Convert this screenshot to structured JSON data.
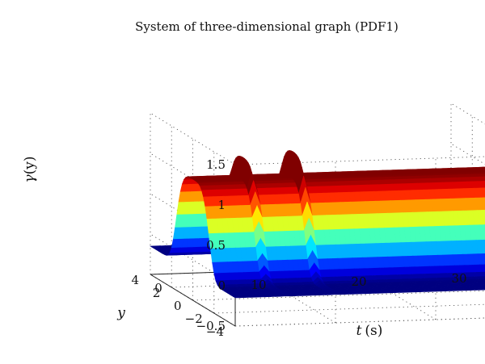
{
  "chart_data": {
    "type": "surface",
    "title": "System of three-dimensional graph (PDF1)",
    "xlabel": {
      "symbol": "t",
      "unit": "(s)"
    },
    "ylabel": "y",
    "zlabel": {
      "symbol": "γ",
      "arg": "(y)"
    },
    "xlim": [
      0,
      30
    ],
    "ylim": [
      -4,
      4
    ],
    "zlim": [
      -0.5,
      1.5
    ],
    "xticks": [
      "0",
      "10",
      "20",
      "30"
    ],
    "yticks": [
      "4",
      "2",
      "0",
      "−2",
      "−4"
    ],
    "zticks": [
      "1.5",
      "1",
      "0.5",
      "0",
      "−0.5"
    ],
    "grid": true,
    "colormap": "jet",
    "surface": {
      "peak_value": 1.0,
      "base_value": -0.15,
      "profile_center_y": 0.0,
      "profile_width_y": 1.4,
      "spikes": [
        {
          "t": 5,
          "height": 0.25
        },
        {
          "t": 10,
          "height": 0.3
        }
      ]
    }
  }
}
